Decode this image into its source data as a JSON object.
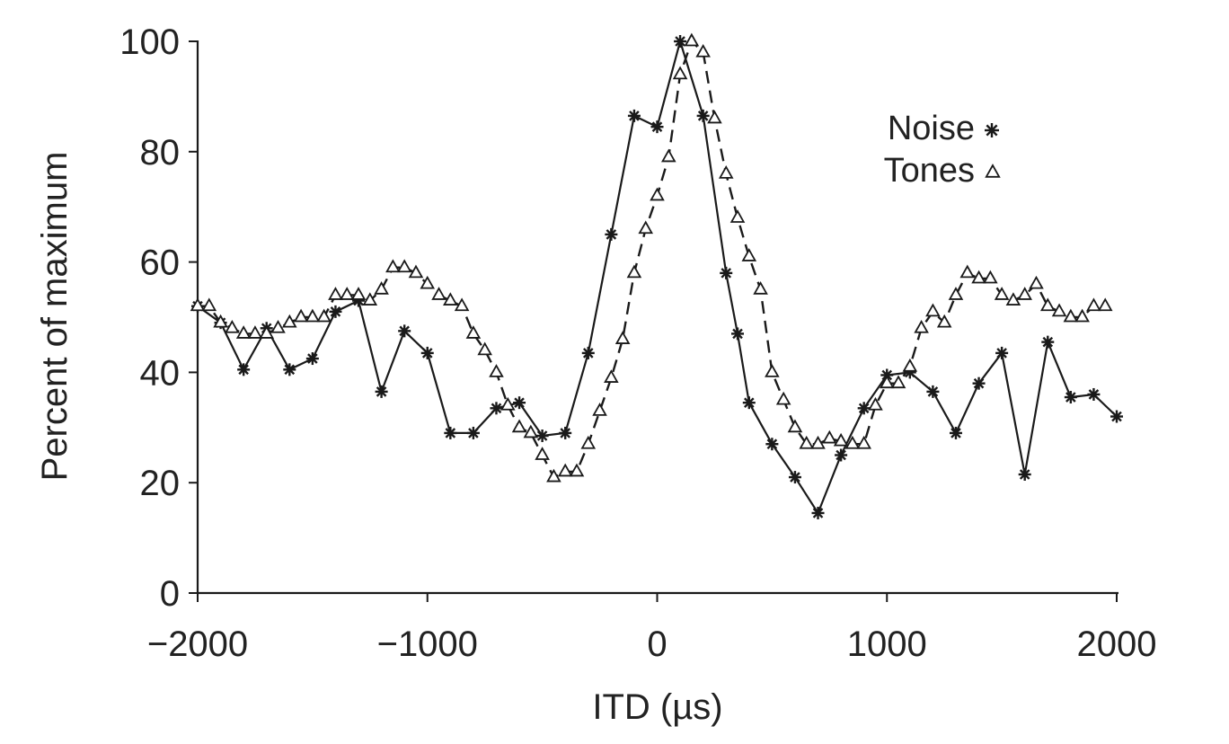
{
  "chart_data": {
    "type": "line",
    "title": "",
    "xlabel": "ITD (µs)",
    "ylabel": "Percent of maximum",
    "xlim": [
      -2000,
      2000
    ],
    "ylim": [
      0,
      100
    ],
    "xticks": [
      -2000,
      -1000,
      0,
      1000,
      2000
    ],
    "xtick_labels": [
      "−2000",
      "−1000",
      "0",
      "1000",
      "2000"
    ],
    "yticks": [
      0,
      20,
      40,
      60,
      80,
      100
    ],
    "ytick_labels": [
      "0",
      "20",
      "40",
      "60",
      "80",
      "100"
    ],
    "grid": false,
    "legend_position": "top-right",
    "series": [
      {
        "name": "Noise",
        "marker": "star",
        "line": "solid",
        "x": [
          -2000,
          -1900,
          -1800,
          -1700,
          -1600,
          -1500,
          -1400,
          -1300,
          -1200,
          -1100,
          -1000,
          -900,
          -800,
          -700,
          -600,
          -500,
          -400,
          -300,
          -200,
          -100,
          0,
          100,
          200,
          300,
          350,
          400,
          500,
          600,
          700,
          800,
          900,
          1000,
          1100,
          1200,
          1300,
          1400,
          1500,
          1600,
          1700,
          1800,
          1900,
          2000
        ],
        "y": [
          52,
          49,
          40.5,
          48,
          40.5,
          42.5,
          51,
          53,
          36.5,
          47.5,
          43.5,
          29,
          29,
          33.5,
          34.5,
          28.5,
          29,
          43.5,
          65,
          86.5,
          84.5,
          100,
          86.5,
          58,
          47,
          34.5,
          27,
          21,
          14.5,
          25,
          33.5,
          39.5,
          40,
          36.5,
          29,
          38,
          43.5,
          21.5,
          45.5,
          35.5,
          36,
          32
        ]
      },
      {
        "name": "Tones",
        "marker": "triangle",
        "line": "dashed",
        "x": [
          -2000,
          -1950,
          -1900,
          -1850,
          -1800,
          -1750,
          -1700,
          -1650,
          -1600,
          -1550,
          -1500,
          -1450,
          -1400,
          -1350,
          -1300,
          -1250,
          -1200,
          -1150,
          -1100,
          -1050,
          -1000,
          -950,
          -900,
          -850,
          -800,
          -750,
          -700,
          -650,
          -600,
          -550,
          -500,
          -450,
          -400,
          -350,
          -300,
          -250,
          -200,
          -150,
          -100,
          -50,
          0,
          50,
          100,
          150,
          200,
          250,
          300,
          350,
          400,
          450,
          500,
          550,
          600,
          650,
          700,
          750,
          800,
          850,
          900,
          950,
          1000,
          1050,
          1100,
          1150,
          1200,
          1250,
          1300,
          1350,
          1400,
          1450,
          1500,
          1550,
          1600,
          1650,
          1700,
          1750,
          1800,
          1850,
          1900,
          1950
        ],
        "y": [
          52,
          52,
          49,
          48,
          47,
          47,
          47,
          48,
          49,
          50,
          50,
          50,
          54,
          54,
          54,
          53,
          55,
          59,
          59,
          58,
          56,
          54,
          53,
          52,
          47,
          44,
          40,
          34,
          30,
          29,
          25,
          21,
          22,
          22,
          27,
          33,
          39,
          46,
          58,
          66,
          72,
          79,
          94,
          100,
          98,
          86,
          76,
          68,
          61,
          55,
          40,
          35,
          30,
          27,
          27,
          28,
          27.5,
          27,
          27,
          34,
          38,
          38,
          41,
          48,
          51,
          49,
          54,
          58,
          57,
          57,
          54,
          53,
          54,
          56,
          52,
          51,
          50,
          50,
          52,
          52
        ]
      }
    ]
  },
  "legend": [
    {
      "label": "Noise",
      "symbol": "star"
    },
    {
      "label": "Tones",
      "symbol": "triangle"
    }
  ]
}
